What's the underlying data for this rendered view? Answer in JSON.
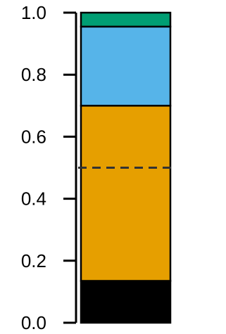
{
  "chart_data": {
    "type": "bar",
    "stacked": true,
    "orientation": "vertical",
    "categories": [
      ""
    ],
    "series": [
      {
        "values": [
          0.135
        ],
        "color": "#000000"
      },
      {
        "values": [
          0.565
        ],
        "color": "#E69F00"
      },
      {
        "values": [
          0.255
        ],
        "color": "#56B4E9"
      },
      {
        "values": [
          0.045
        ],
        "color": "#009E73"
      }
    ],
    "ylim": [
      0,
      1
    ],
    "yticks": [
      {
        "value": 0.0,
        "label": "0.0"
      },
      {
        "value": 0.2,
        "label": "0.2"
      },
      {
        "value": 0.4,
        "label": "0.4"
      },
      {
        "value": 0.6,
        "label": "0.6"
      },
      {
        "value": 0.8,
        "label": "0.8"
      },
      {
        "value": 1.0,
        "label": "1.0"
      }
    ],
    "reference_line": {
      "value": 0.5,
      "style": "dashed",
      "color": "#333333"
    },
    "grid": false,
    "legend": "none"
  }
}
